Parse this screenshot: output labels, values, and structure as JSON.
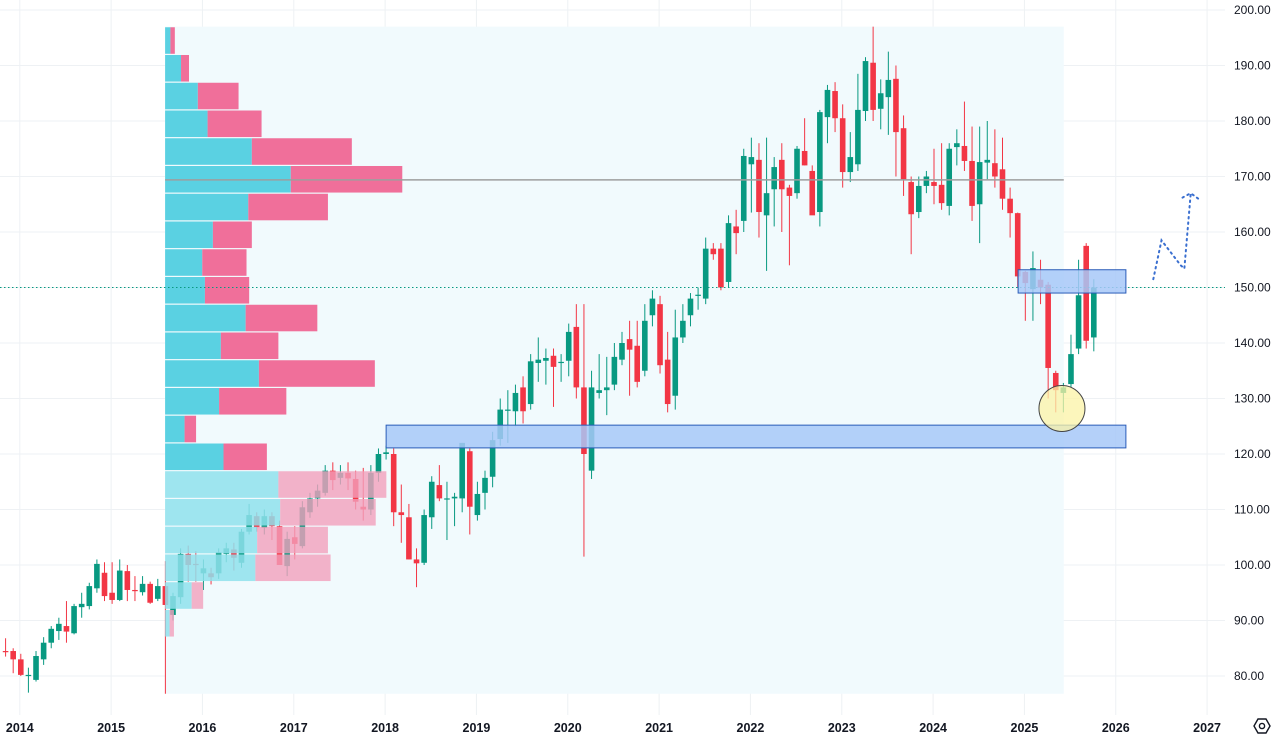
{
  "chart_data": {
    "type": "candlestick",
    "interval": "monthly",
    "start_month": "2013-11",
    "ohlc_fields": [
      "open",
      "high",
      "low",
      "close"
    ],
    "ohlc": [
      [
        84.5,
        86.8,
        83.5,
        84.3
      ],
      [
        84.5,
        85,
        80.5,
        83
      ],
      [
        83,
        84,
        80,
        80.2
      ],
      [
        80.2,
        81.5,
        77,
        80.2
      ],
      [
        79.3,
        84.5,
        79,
        83.6
      ],
      [
        83,
        87,
        82,
        86
      ],
      [
        86,
        89,
        85,
        88.5
      ],
      [
        88.1,
        90.5,
        86.5,
        89.4
      ],
      [
        89,
        93.5,
        86,
        88
      ],
      [
        87.7,
        93,
        87.5,
        92.6
      ],
      [
        92.4,
        95,
        90.5,
        93
      ],
      [
        92.6,
        96.8,
        92,
        96.2
      ],
      [
        95.8,
        101,
        95,
        100.2
      ],
      [
        98.6,
        100.5,
        93.5,
        94.4
      ],
      [
        95,
        100.5,
        93,
        93.7
      ],
      [
        93.7,
        101,
        93.5,
        99
      ],
      [
        98.9,
        100,
        93.5,
        95.5
      ],
      [
        95.5,
        98,
        93.5,
        95.3
      ],
      [
        95.1,
        98,
        94.5,
        96.6
      ],
      [
        96.6,
        97,
        93,
        93.2
      ],
      [
        93.9,
        97.5,
        93.5,
        96.2
      ],
      [
        96.2,
        100.7,
        76.8,
        92.8
      ],
      [
        91,
        95,
        90,
        94.4
      ],
      [
        94.2,
        103,
        93,
        102
      ],
      [
        102,
        103.5,
        97,
        100
      ],
      [
        100.2,
        102.5,
        97,
        100.1
      ],
      [
        98.5,
        101,
        95.5,
        99.4
      ],
      [
        98.5,
        99.5,
        96.5,
        97.8
      ],
      [
        98.5,
        103,
        97.5,
        102.3
      ],
      [
        102,
        104,
        100.5,
        103
      ],
      [
        102.8,
        104,
        99,
        101.3
      ],
      [
        100.4,
        106.5,
        99.5,
        106
      ],
      [
        106,
        111,
        105.5,
        109
      ],
      [
        108.8,
        109.5,
        106,
        106.8
      ],
      [
        106.7,
        110,
        105.5,
        108.8
      ],
      [
        108.8,
        109.5,
        104.5,
        107
      ],
      [
        107,
        108,
        100,
        100
      ],
      [
        99.8,
        106,
        98,
        104.7
      ],
      [
        105,
        107,
        101,
        103.8
      ],
      [
        103.4,
        111.5,
        103,
        110.4
      ],
      [
        109.5,
        113,
        108.5,
        112
      ],
      [
        112,
        114.5,
        110.5,
        113.4
      ],
      [
        113,
        118,
        112.5,
        117
      ],
      [
        117,
        118.5,
        113.5,
        115.3
      ],
      [
        115.7,
        118,
        114.5,
        116.6
      ],
      [
        116.6,
        118.5,
        113.5,
        115.6
      ],
      [
        115.5,
        117,
        110,
        111.4
      ],
      [
        110.5,
        117.5,
        108,
        110
      ],
      [
        110,
        118,
        109,
        116.6
      ],
      [
        116.6,
        121,
        115,
        120
      ],
      [
        120,
        121.5,
        119,
        120.3
      ],
      [
        120,
        121,
        107,
        109.5
      ],
      [
        109.5,
        114.5,
        104,
        109
      ],
      [
        108.6,
        111,
        101,
        101
      ],
      [
        101,
        103,
        96,
        100.3
      ],
      [
        100.4,
        110,
        100,
        109
      ],
      [
        108.6,
        116,
        106.5,
        115
      ],
      [
        114.4,
        118,
        111.5,
        112
      ],
      [
        112,
        115,
        104.5,
        112
      ],
      [
        112,
        113,
        107,
        112.3
      ],
      [
        112,
        122,
        109.5,
        122
      ],
      [
        120.5,
        121,
        105.5,
        110.5
      ],
      [
        109,
        115,
        108,
        112.8
      ],
      [
        113,
        117,
        110,
        115.7
      ],
      [
        115.9,
        124,
        114,
        122.5
      ],
      [
        122.7,
        130,
        121.5,
        128
      ],
      [
        128,
        131.5,
        122,
        128
      ],
      [
        127.7,
        132.5,
        125,
        131
      ],
      [
        132,
        134,
        125.5,
        127.7
      ],
      [
        129,
        138,
        128,
        136.7
      ],
      [
        136.4,
        141,
        133,
        137
      ],
      [
        136.8,
        139,
        132.5,
        137.3
      ],
      [
        137.7,
        139,
        128.5,
        135.7
      ],
      [
        136.4,
        138,
        133,
        136.6
      ],
      [
        136.8,
        143.5,
        134,
        142
      ],
      [
        142.9,
        147,
        130,
        132
      ],
      [
        132,
        147,
        101.5,
        120
      ],
      [
        117,
        135,
        115.5,
        132
      ],
      [
        131,
        138,
        130,
        131.5
      ],
      [
        131.5,
        137.5,
        127,
        132
      ],
      [
        132.5,
        140,
        131.5,
        137.5
      ],
      [
        137,
        142,
        136,
        140
      ],
      [
        140.7,
        144,
        130.5,
        138.8
      ],
      [
        139.5,
        144,
        132,
        133
      ],
      [
        135,
        147,
        134,
        144
      ],
      [
        145,
        149.5,
        143,
        148
      ],
      [
        147,
        148.5,
        134.5,
        136
      ],
      [
        137,
        142,
        127.5,
        129
      ],
      [
        130.5,
        146,
        128,
        141
      ],
      [
        141,
        147,
        140,
        144
      ],
      [
        145,
        149,
        143,
        148
      ],
      [
        148.5,
        150,
        146,
        148.7
      ],
      [
        148,
        159,
        147,
        157
      ],
      [
        157,
        158,
        155,
        156
      ],
      [
        157,
        158,
        149.5,
        150
      ],
      [
        151,
        163,
        150,
        161.6
      ],
      [
        161,
        164,
        156,
        159.8
      ],
      [
        162,
        175,
        160,
        173.7
      ],
      [
        172.2,
        177,
        163.5,
        173.5
      ],
      [
        173,
        176,
        159,
        163.6
      ],
      [
        163,
        177,
        153,
        167
      ],
      [
        167.7,
        173.5,
        161,
        171.7
      ],
      [
        173,
        176,
        160,
        167.7
      ],
      [
        168,
        168.5,
        154,
        166.5
      ],
      [
        167,
        175.5,
        166,
        175
      ],
      [
        174.6,
        180.5,
        172,
        172
      ],
      [
        171,
        172,
        163.5,
        163
      ],
      [
        163.6,
        182,
        161,
        181.6
      ],
      [
        180.7,
        186.5,
        176,
        185.6
      ],
      [
        185.4,
        187,
        178,
        180.5
      ],
      [
        180.5,
        183,
        168,
        170.8
      ],
      [
        170.8,
        178,
        169,
        173.5
      ],
      [
        172.2,
        188.5,
        171,
        182
      ],
      [
        181.8,
        191.5,
        180,
        190.8
      ],
      [
        190.5,
        197,
        180,
        182
      ],
      [
        182.2,
        187.5,
        178.5,
        185
      ],
      [
        184.3,
        192.5,
        177.5,
        187.4
      ],
      [
        187.6,
        190,
        170,
        178
      ],
      [
        178.7,
        181,
        166.5,
        169.5
      ],
      [
        169,
        170,
        156,
        163.2
      ],
      [
        163.6,
        170,
        162.5,
        168.3
      ],
      [
        168.3,
        171,
        167,
        170
      ],
      [
        169,
        175,
        165,
        168.3
      ],
      [
        168.5,
        176,
        164,
        165.2
      ],
      [
        164.7,
        176,
        163,
        175
      ],
      [
        175.3,
        178.5,
        172,
        176
      ],
      [
        175.5,
        183.5,
        171,
        172.8
      ],
      [
        172.8,
        179,
        162,
        164.7
      ],
      [
        165,
        179,
        158,
        172.6
      ],
      [
        172.5,
        180,
        169.5,
        173
      ],
      [
        172.4,
        178.5,
        168,
        170
      ],
      [
        171.3,
        177,
        164,
        166
      ],
      [
        166,
        168,
        159,
        163.4
      ],
      [
        163.4,
        163.5,
        150,
        152
      ],
      [
        152.8,
        153,
        144,
        150.8
      ],
      [
        149.7,
        156.5,
        144,
        153.5
      ],
      [
        151.4,
        155,
        147,
        150
      ],
      [
        150.5,
        151,
        130,
        135.5
      ],
      [
        134.6,
        135,
        127.5,
        131.5
      ],
      [
        131,
        132.8,
        127.5,
        132
      ],
      [
        132.6,
        141.5,
        132,
        138
      ],
      [
        139,
        155,
        138,
        148.6
      ],
      [
        157.5,
        158,
        139,
        140.4
      ],
      [
        141,
        151.5,
        138.5,
        150
      ]
    ],
    "last_price": 150,
    "y_axis": {
      "min": 80,
      "max": 200,
      "step": 10,
      "tick_labels": [
        "80.00",
        "90.00",
        "100.00",
        "110.00",
        "120.00",
        "130.00",
        "140.00",
        "150.00",
        "160.00",
        "170.00",
        "180.00",
        "190.00",
        "200.00"
      ]
    },
    "x_axis": {
      "tick_labels": [
        "2014",
        "2015",
        "2016",
        "2017",
        "2018",
        "2019",
        "2020",
        "2021",
        "2022",
        "2023",
        "2024",
        "2025",
        "2026",
        "2027"
      ]
    },
    "grid": true,
    "volume_profile": {
      "row_size": 5,
      "rows_high_to_low": [
        {
          "low": 192,
          "high": 197,
          "up": 6,
          "down": 5
        },
        {
          "low": 187,
          "high": 192,
          "up": 18,
          "down": 9
        },
        {
          "low": 182,
          "high": 187,
          "up": 37,
          "down": 46
        },
        {
          "low": 177,
          "high": 182,
          "up": 48,
          "down": 61
        },
        {
          "low": 172,
          "high": 177,
          "up": 98,
          "down": 113
        },
        {
          "low": 167,
          "high": 172,
          "up": 142,
          "down": 126
        },
        {
          "low": 162,
          "high": 167,
          "up": 94,
          "down": 90
        },
        {
          "low": 157,
          "high": 162,
          "up": 54,
          "down": 44
        },
        {
          "low": 152,
          "high": 157,
          "up": 42,
          "down": 50
        },
        {
          "low": 147,
          "high": 152,
          "up": 45,
          "down": 50
        },
        {
          "low": 142,
          "high": 147,
          "up": 91,
          "down": 81
        },
        {
          "low": 137,
          "high": 142,
          "up": 63,
          "down": 65
        },
        {
          "low": 132,
          "high": 137,
          "up": 106,
          "down": 131
        },
        {
          "low": 127,
          "high": 132,
          "up": 61,
          "down": 76
        },
        {
          "low": 122,
          "high": 127,
          "up": 22,
          "down": 13
        },
        {
          "low": 117,
          "high": 122,
          "up": 66,
          "down": 49
        },
        {
          "low": 112,
          "high": 117,
          "up": 128,
          "down": 122,
          "faded": true
        },
        {
          "low": 107,
          "high": 112,
          "up": 130,
          "down": 108,
          "faded": true
        },
        {
          "low": 102,
          "high": 107,
          "up": 104,
          "down": 80,
          "faded": true
        },
        {
          "low": 97,
          "high": 102,
          "up": 102,
          "down": 85,
          "faded": true
        },
        {
          "low": 92,
          "high": 97,
          "up": 30,
          "down": 13,
          "faded": true
        },
        {
          "low": 87,
          "high": 92,
          "up": 5,
          "down": 5,
          "faded": true
        }
      ],
      "poc_price": 169.4,
      "range_start": 2015.58,
      "range_end": 2025.42
    },
    "drawings": {
      "support_zones": [
        {
          "from": 2018.0,
          "to": 2026.1,
          "low": 121.1,
          "high": 125.2
        },
        {
          "from": 2024.92,
          "to": 2026.1,
          "low": 149.0,
          "high": 153.2
        }
      ],
      "highlight_circle": {
        "date": 2025.4,
        "price": 128.2
      },
      "projection_path": [
        [
          2026.4,
          151.5
        ],
        [
          2026.49,
          158.5
        ],
        [
          2026.7,
          154
        ],
        [
          2026.74,
          153.4
        ],
        [
          2026.81,
          167
        ],
        [
          2026.91,
          165.8
        ]
      ],
      "projection_arrow_tail": [
        2026.72,
        166.2
      ]
    },
    "colors": {
      "up": "#089981",
      "down": "#f23645",
      "profile_up": "#5ad1e2",
      "profile_down": "#f06f9a",
      "profile_up_faded": "#8fe1ec",
      "profile_down_faded": "#f2a0bc",
      "zone": "#a7c8f8",
      "zone_border": "#2a5cb8",
      "circle": "#fbf3a6",
      "poc": "#9e9e9e",
      "last_price": "#089981",
      "projection": "#3a6fd0"
    }
  },
  "settings_icon": "gear-icon"
}
